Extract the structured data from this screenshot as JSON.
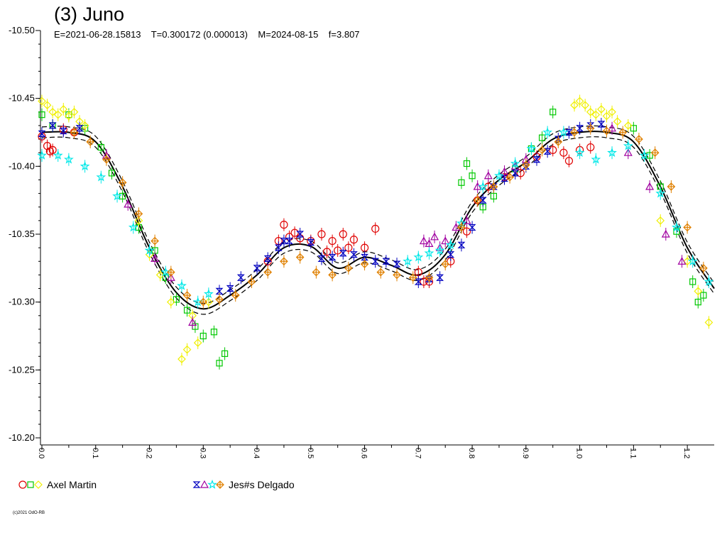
{
  "chart_data": {
    "type": "scatter",
    "title": "(3) Juno",
    "subtitle": "E=2021-06-28.15813    T=0.300172 (0.000013)    M=2024-08-15    f=3.807",
    "xlabel": "",
    "ylabel": "",
    "xlim": [
      0.0,
      1.25
    ],
    "ylim": [
      -10.5,
      -10.2
    ],
    "y_inverted": true,
    "x_ticks": [
      "0.0",
      "0.1",
      "0.2",
      "0.3",
      "0.4",
      "0.5",
      "0.6",
      "0.7",
      "0.8",
      "0.9",
      "1.0",
      "1.1",
      "1.2"
    ],
    "y_ticks": [
      "-10.50",
      "-10.45",
      "-10.40",
      "-10.35",
      "-10.30",
      "-10.25",
      "-10.20"
    ],
    "grid": false,
    "legend_position": "bottom",
    "legend": [
      {
        "label": "Axel Martin",
        "symbols": [
          "circle",
          "square",
          "diamond"
        ],
        "colors": [
          "#e00000",
          "#00c800",
          "#f0f000"
        ]
      },
      {
        "label": "Jes#s Delgado",
        "symbols": [
          "hourglass",
          "triangle",
          "star",
          "cross-diamond"
        ],
        "colors": [
          "#0000c0",
          "#a000a0",
          "#00e8e8",
          "#e08000"
        ]
      }
    ],
    "fit_curve": {
      "x": [
        0.0,
        0.05,
        0.1,
        0.15,
        0.2,
        0.25,
        0.3,
        0.35,
        0.4,
        0.45,
        0.5,
        0.55,
        0.6,
        0.65,
        0.7,
        0.75,
        0.8,
        0.85,
        0.9,
        0.95,
        1.0,
        1.05,
        1.1,
        1.15,
        1.2,
        1.25
      ],
      "y": [
        -10.425,
        -10.425,
        -10.418,
        -10.385,
        -10.34,
        -10.307,
        -10.295,
        -10.305,
        -10.32,
        -10.34,
        -10.341,
        -10.325,
        -10.333,
        -10.327,
        -10.32,
        -10.335,
        -10.37,
        -10.39,
        -10.403,
        -10.42,
        -10.425,
        -10.425,
        -10.418,
        -10.385,
        -10.34,
        -10.31
      ]
    },
    "series": [
      {
        "name": "Axel Martin",
        "symbol": "circle",
        "color": "#e00000",
        "x": [
          0.0,
          0.01,
          0.015,
          0.02,
          0.04,
          0.06,
          0.42,
          0.44,
          0.45,
          0.46,
          0.47,
          0.48,
          0.5,
          0.52,
          0.53,
          0.54,
          0.55,
          0.56,
          0.57,
          0.58,
          0.6,
          0.62,
          0.7,
          0.71,
          0.72,
          0.76,
          0.79,
          0.81,
          0.83,
          0.86,
          0.89,
          0.92,
          0.95,
          0.97,
          0.98,
          1.0,
          1.02
        ],
        "y": [
          -10.422,
          -10.415,
          -10.411,
          -10.412,
          -10.427,
          -10.425,
          -10.33,
          -10.345,
          -10.357,
          -10.348,
          -10.351,
          -10.347,
          -10.345,
          -10.35,
          -10.337,
          -10.345,
          -10.338,
          -10.35,
          -10.34,
          -10.346,
          -10.34,
          -10.354,
          -10.322,
          -10.315,
          -10.315,
          -10.33,
          -10.352,
          -10.375,
          -10.385,
          -10.392,
          -10.395,
          -10.407,
          -10.412,
          -10.41,
          -10.404,
          -10.412,
          -10.414
        ]
      },
      {
        "name": "Axel Martin",
        "symbol": "square",
        "color": "#00c800",
        "x": [
          0.0,
          0.02,
          0.05,
          0.08,
          0.11,
          0.13,
          0.15,
          0.18,
          0.21,
          0.23,
          0.25,
          0.27,
          0.285,
          0.3,
          0.32,
          0.33,
          0.34,
          0.78,
          0.79,
          0.8,
          0.82,
          0.84,
          0.88,
          0.91,
          0.93,
          0.95,
          1.1,
          1.13,
          1.15,
          1.18,
          1.21,
          1.22,
          1.23
        ],
        "y": [
          -10.438,
          -10.43,
          -10.438,
          -10.428,
          -10.414,
          -10.395,
          -10.378,
          -10.355,
          -10.338,
          -10.318,
          -10.302,
          -10.294,
          -10.282,
          -10.275,
          -10.278,
          -10.255,
          -10.262,
          -10.388,
          -10.402,
          -10.393,
          -10.37,
          -10.378,
          -10.398,
          -10.413,
          -10.421,
          -10.44,
          -10.428,
          -10.408,
          -10.385,
          -10.352,
          -10.315,
          -10.3,
          -10.305
        ]
      },
      {
        "name": "Axel Martin",
        "symbol": "diamond",
        "color": "#f0f000",
        "x": [
          0.0,
          0.01,
          0.02,
          0.03,
          0.04,
          0.05,
          0.06,
          0.07,
          0.08,
          0.18,
          0.2,
          0.22,
          0.24,
          0.26,
          0.27,
          0.28,
          0.29,
          0.31,
          0.99,
          1.0,
          1.01,
          1.02,
          1.03,
          1.04,
          1.05,
          1.06,
          1.07,
          1.09,
          1.15,
          1.2,
          1.22,
          1.24
        ],
        "y": [
          -10.448,
          -10.445,
          -10.44,
          -10.438,
          -10.442,
          -10.437,
          -10.44,
          -10.433,
          -10.43,
          -10.36,
          -10.335,
          -10.32,
          -10.3,
          -10.258,
          -10.265,
          -10.29,
          -10.27,
          -10.3,
          -10.445,
          -10.448,
          -10.445,
          -10.44,
          -10.438,
          -10.442,
          -10.437,
          -10.44,
          -10.433,
          -10.43,
          -10.36,
          -10.33,
          -10.308,
          -10.285
        ]
      },
      {
        "name": "Jes#s Delgado",
        "symbol": "hourglass",
        "color": "#0000c0",
        "x": [
          0.0,
          0.02,
          0.04,
          0.07,
          0.33,
          0.35,
          0.37,
          0.4,
          0.42,
          0.44,
          0.45,
          0.46,
          0.48,
          0.5,
          0.52,
          0.54,
          0.56,
          0.58,
          0.6,
          0.62,
          0.64,
          0.66,
          0.7,
          0.72,
          0.74,
          0.76,
          0.78,
          0.8,
          0.82,
          0.84,
          0.86,
          0.88,
          0.9,
          0.92,
          0.94,
          0.96,
          0.98,
          1.0,
          1.02,
          1.04
        ],
        "y": [
          -10.424,
          -10.43,
          -10.426,
          -10.428,
          -10.308,
          -10.31,
          -10.318,
          -10.325,
          -10.332,
          -10.34,
          -10.345,
          -10.345,
          -10.35,
          -10.344,
          -10.332,
          -10.333,
          -10.336,
          -10.335,
          -10.333,
          -10.33,
          -10.33,
          -10.328,
          -10.315,
          -10.317,
          -10.318,
          -10.335,
          -10.342,
          -10.355,
          -10.375,
          -10.385,
          -10.391,
          -10.395,
          -10.4,
          -10.405,
          -10.411,
          -10.42,
          -10.425,
          -10.428,
          -10.43,
          -10.431
        ]
      },
      {
        "name": "Jes#s Delgado",
        "symbol": "triangle",
        "color": "#a000a0",
        "x": [
          0.12,
          0.16,
          0.21,
          0.24,
          0.28,
          0.71,
          0.72,
          0.73,
          0.74,
          0.75,
          0.77,
          0.79,
          0.81,
          0.83,
          0.86,
          0.88,
          0.9,
          1.06,
          1.09,
          1.13,
          1.16,
          1.19
        ],
        "y": [
          -10.408,
          -10.372,
          -10.332,
          -10.318,
          -10.285,
          -10.345,
          -10.343,
          -10.348,
          -10.34,
          -10.345,
          -10.355,
          -10.36,
          -10.385,
          -10.393,
          -10.396,
          -10.4,
          -10.405,
          -10.428,
          -10.41,
          -10.385,
          -10.35,
          -10.33
        ]
      },
      {
        "name": "Jes#s Delgado",
        "symbol": "star",
        "color": "#00e8e8",
        "x": [
          0.0,
          0.03,
          0.05,
          0.08,
          0.11,
          0.14,
          0.17,
          0.2,
          0.23,
          0.26,
          0.29,
          0.31,
          0.68,
          0.7,
          0.72,
          0.74,
          0.76,
          0.78,
          0.82,
          0.85,
          0.88,
          0.91,
          0.94,
          0.97,
          1.0,
          1.03,
          1.06,
          1.09,
          1.12,
          1.15,
          1.18,
          1.21,
          1.24
        ],
        "y": [
          -10.408,
          -10.408,
          -10.405,
          -10.4,
          -10.392,
          -10.378,
          -10.355,
          -10.338,
          -10.322,
          -10.312,
          -10.3,
          -10.306,
          -10.33,
          -10.333,
          -10.336,
          -10.338,
          -10.342,
          -10.358,
          -10.385,
          -10.393,
          -10.402,
          -10.413,
          -10.425,
          -10.425,
          -10.41,
          -10.405,
          -10.41,
          -10.415,
          -10.408,
          -10.38,
          -10.355,
          -10.33,
          -10.315
        ]
      },
      {
        "name": "Jes#s Delgado",
        "symbol": "cross-diamond",
        "color": "#e08000",
        "x": [
          0.06,
          0.09,
          0.12,
          0.15,
          0.18,
          0.21,
          0.24,
          0.27,
          0.3,
          0.33,
          0.36,
          0.39,
          0.42,
          0.45,
          0.48,
          0.51,
          0.54,
          0.57,
          0.6,
          0.63,
          0.66,
          0.69,
          0.72,
          0.75,
          0.78,
          0.81,
          0.84,
          0.87,
          0.9,
          0.93,
          0.96,
          0.99,
          1.02,
          1.05,
          1.08,
          1.11,
          1.14,
          1.17,
          1.2,
          1.23
        ],
        "y": [
          -10.425,
          -10.418,
          -10.405,
          -10.388,
          -10.365,
          -10.345,
          -10.322,
          -10.305,
          -10.3,
          -10.302,
          -10.305,
          -10.315,
          -10.322,
          -10.33,
          -10.333,
          -10.322,
          -10.32,
          -10.325,
          -10.328,
          -10.322,
          -10.32,
          -10.318,
          -10.318,
          -10.328,
          -10.355,
          -10.375,
          -10.385,
          -10.392,
          -10.401,
          -10.412,
          -10.418,
          -10.425,
          -10.428,
          -10.426,
          -10.425,
          -10.42,
          -10.41,
          -10.385,
          -10.355,
          -10.325
        ]
      }
    ]
  }
}
